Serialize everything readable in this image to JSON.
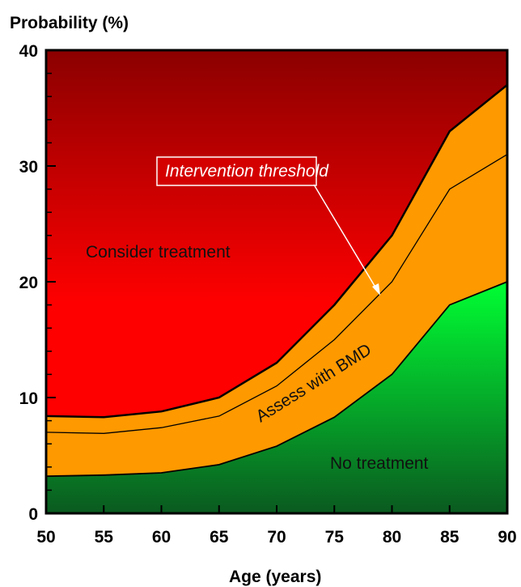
{
  "chart_data": {
    "type": "area",
    "ylabel": "Probability (%)",
    "xlabel": "Age (years)",
    "xlim": [
      50,
      90
    ],
    "ylim": [
      0,
      40
    ],
    "x_ticks": [
      50,
      55,
      60,
      65,
      70,
      75,
      80,
      85,
      90
    ],
    "y_ticks": [
      0,
      10,
      20,
      30,
      40
    ],
    "x": [
      50,
      55,
      60,
      65,
      70,
      75,
      80,
      85,
      90
    ],
    "boundaries": {
      "lower_assessment": [
        3.2,
        3.3,
        3.5,
        4.2,
        5.8,
        8.3,
        12.0,
        18.0,
        20.0
      ],
      "intervention_threshold": [
        7.0,
        6.9,
        7.4,
        8.4,
        11.0,
        15.0,
        20.0,
        28.0,
        31.0
      ],
      "upper_assessment": [
        8.4,
        8.3,
        8.8,
        10.0,
        13.0,
        18.0,
        24.0,
        33.0,
        37.0
      ]
    },
    "regions": {
      "consider": "Consider treatment",
      "assess": "Assess with BMD",
      "none": "No treatment"
    },
    "annotation": "Intervention threshold",
    "colors": {
      "red_top": "#8b0000",
      "red_bottom": "#ff0000",
      "orange": "#ff9900",
      "green_top": "#00ff33",
      "green_bottom": "#0a5a20"
    }
  }
}
